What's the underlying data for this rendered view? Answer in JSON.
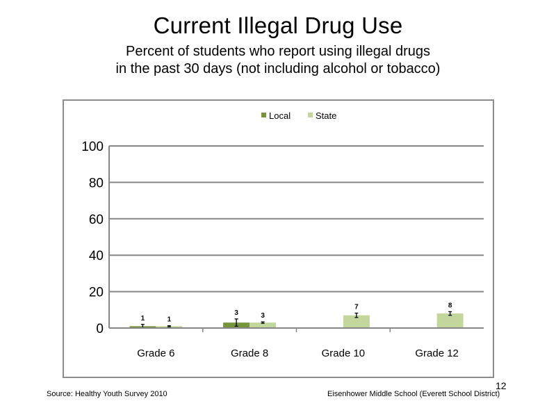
{
  "slide": {
    "title": "Current Illegal Drug Use",
    "subtitle_line1": "Percent of students who report using illegal drugs",
    "subtitle_line2": "in the past 30 days (not including  alcohol or tobacco)",
    "source": "Source: Healthy Youth Survey 2010",
    "school": "Eisenhower Middle  School (Everett School District)",
    "page_number": "12"
  },
  "chart_data": {
    "type": "bar",
    "categories": [
      "Grade 6",
      "Grade 8",
      "Grade 10",
      "Grade 12"
    ],
    "series": [
      {
        "name": "Local",
        "color": "#77933c",
        "values": [
          1,
          3,
          null,
          null
        ],
        "labels": [
          "1",
          "3",
          "",
          ""
        ],
        "error": [
          1,
          2,
          null,
          null
        ]
      },
      {
        "name": "State",
        "color": "#c3d69b",
        "values": [
          1,
          3,
          7,
          8
        ],
        "labels": [
          "1",
          "3",
          "7",
          "8"
        ],
        "error": [
          0.3,
          0.4,
          1.2,
          1
        ]
      }
    ],
    "ylim": [
      0,
      100
    ],
    "yticks": [
      "0",
      "20",
      "40",
      "60",
      "80",
      "100"
    ],
    "grid": true,
    "legend_position": "top"
  }
}
